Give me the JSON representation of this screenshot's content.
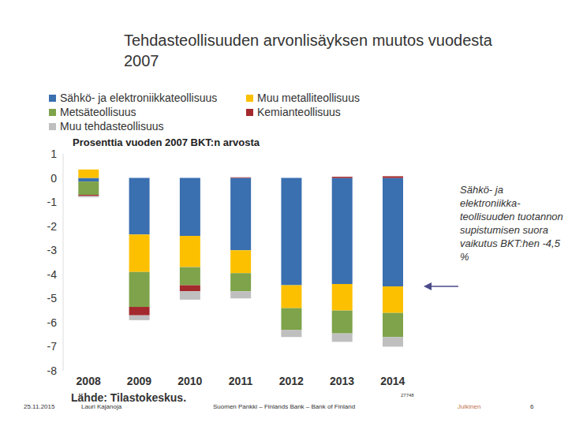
{
  "chart_data": {
    "type": "bar",
    "stacked": true,
    "title": "Tehdasteollisuuden arvonlisäyksen muutos vuodesta 2007",
    "ylabel": "Prosenttia vuoden 2007 BKT:n arvosta",
    "categories": [
      "2008",
      "2009",
      "2010",
      "2011",
      "2012",
      "2013",
      "2014"
    ],
    "series": [
      {
        "name": "Sähkö- ja elektroniikkateollisuus",
        "color": "#3a6fb0",
        "values": [
          -0.15,
          -2.35,
          -2.4,
          -3.0,
          -4.45,
          -4.4,
          -4.5
        ]
      },
      {
        "name": "Muu metalliteollisuus",
        "color": "#fcc000",
        "values": [
          0.35,
          -1.55,
          -1.3,
          -0.95,
          -0.95,
          -1.1,
          -1.1
        ]
      },
      {
        "name": "Metsäteollisuus",
        "color": "#7ea34a",
        "values": [
          -0.55,
          -1.45,
          -0.75,
          -0.75,
          -0.9,
          -0.95,
          -1.0
        ]
      },
      {
        "name": "Kemianteollisuus",
        "color": "#a3292c",
        "values": [
          -0.05,
          -0.35,
          -0.25,
          0.03,
          0.0,
          0.05,
          0.07
        ]
      },
      {
        "name": "Muu tehdasteollisuus",
        "color": "#bfbfbf",
        "values": [
          -0.05,
          -0.2,
          -0.35,
          -0.3,
          -0.3,
          -0.35,
          -0.4
        ]
      }
    ],
    "ylim": [
      -8,
      1
    ],
    "yticks": [
      -8,
      -7,
      -6,
      -5,
      -4,
      -3,
      -2,
      -1,
      0,
      1
    ],
    "grid": false,
    "annotations": [
      "Sähkö- ja elektroniikka-teollisuuden tuotannon supistumisen suora vaikutus BKT:hen -4,5 %"
    ],
    "source": "Lähde: Tilastokeskus.",
    "chart_id": "27748",
    "footer": [
      "25.11.2015",
      "Lauri Kajanoja",
      "Suomen Pankki – Finlands Bank – Bank of Finland",
      "Julkinen",
      "6"
    ]
  }
}
